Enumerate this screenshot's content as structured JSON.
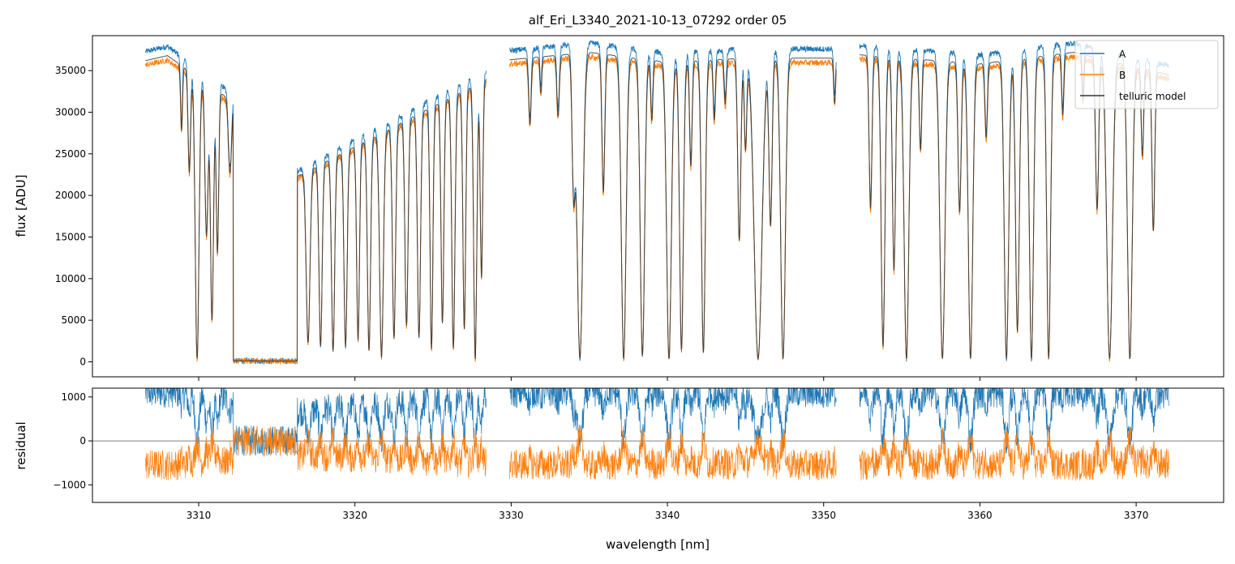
{
  "chart_data": [
    {
      "type": "line",
      "panel": "top",
      "title": "alf_Eri_L3340_2021-10-13_07292  order 05",
      "xlabel": "",
      "ylabel": "flux [ADU]",
      "xlim": [
        3303.2,
        3375.6
      ],
      "ylim": [
        -1800,
        39200
      ],
      "xticks": [
        3310,
        3320,
        3330,
        3340,
        3350,
        3360,
        3370
      ],
      "xtick_labels_visible": false,
      "yticks": [
        0,
        5000,
        10000,
        15000,
        20000,
        25000,
        30000,
        35000
      ],
      "ytick_labels": [
        "0",
        "5000",
        "10000",
        "15000",
        "20000",
        "25000",
        "30000",
        "35000"
      ],
      "grid": false,
      "legend_position": "top-right",
      "segments": [
        [
          3306.6,
          3328.4
        ],
        [
          3329.9,
          3350.8
        ],
        [
          3352.3,
          3372.1
        ]
      ],
      "series": [
        {
          "name": "A",
          "color": "#1f77b4",
          "scale": 1.03
        },
        {
          "name": "B",
          "color": "#ff7f0e",
          "scale": 0.985
        },
        {
          "name": "telluric model",
          "color": "#333333",
          "scale": 1.0
        }
      ],
      "spectrum_profile": {
        "continuum": [
          {
            "x": 3306.6,
            "y": 36200
          },
          {
            "x": 3308.0,
            "y": 36800
          },
          {
            "x": 3312.0,
            "y": 31500
          },
          {
            "x": 3316.0,
            "y": 22000
          },
          {
            "x": 3328.4,
            "y": 34000
          },
          {
            "x": 3329.9,
            "y": 36300
          },
          {
            "x": 3335.0,
            "y": 37200
          },
          {
            "x": 3340.0,
            "y": 36000
          },
          {
            "x": 3345.0,
            "y": 36500
          },
          {
            "x": 3350.8,
            "y": 36500
          },
          {
            "x": 3352.3,
            "y": 36900
          },
          {
            "x": 3360.0,
            "y": 35800
          },
          {
            "x": 3366.0,
            "y": 37200
          },
          {
            "x": 3372.1,
            "y": 34500
          }
        ],
        "blocked_band": [
          3312.2,
          3316.3
        ],
        "absorption_lines": [
          {
            "x": 3308.9,
            "depth": 0.22,
            "width": 0.06
          },
          {
            "x": 3309.4,
            "depth": 0.35,
            "width": 0.08
          },
          {
            "x": 3309.9,
            "depth": 0.99,
            "width": 0.12
          },
          {
            "x": 3310.5,
            "depth": 0.55,
            "width": 0.1
          },
          {
            "x": 3310.85,
            "depth": 0.85,
            "width": 0.1
          },
          {
            "x": 3311.2,
            "depth": 0.6,
            "width": 0.08
          },
          {
            "x": 3312.0,
            "depth": 0.28,
            "width": 0.1
          },
          {
            "x": 3317.0,
            "depth": 0.9,
            "width": 0.12
          },
          {
            "x": 3317.8,
            "depth": 0.92,
            "width": 0.1
          },
          {
            "x": 3318.6,
            "depth": 0.95,
            "width": 0.1
          },
          {
            "x": 3319.4,
            "depth": 0.93,
            "width": 0.1
          },
          {
            "x": 3320.2,
            "depth": 0.9,
            "width": 0.09
          },
          {
            "x": 3320.9,
            "depth": 0.95,
            "width": 0.1
          },
          {
            "x": 3321.7,
            "depth": 0.98,
            "width": 0.12
          },
          {
            "x": 3322.5,
            "depth": 0.9,
            "width": 0.1
          },
          {
            "x": 3323.3,
            "depth": 0.85,
            "width": 0.1
          },
          {
            "x": 3324.1,
            "depth": 0.9,
            "width": 0.1
          },
          {
            "x": 3324.9,
            "depth": 0.95,
            "width": 0.09
          },
          {
            "x": 3325.6,
            "depth": 0.85,
            "width": 0.09
          },
          {
            "x": 3326.3,
            "depth": 0.95,
            "width": 0.1
          },
          {
            "x": 3327.0,
            "depth": 0.88,
            "width": 0.09
          },
          {
            "x": 3327.7,
            "depth": 0.99,
            "width": 0.1
          },
          {
            "x": 3328.1,
            "depth": 0.7,
            "width": 0.08
          },
          {
            "x": 3331.2,
            "depth": 0.22,
            "width": 0.08
          },
          {
            "x": 3331.9,
            "depth": 0.12,
            "width": 0.06
          },
          {
            "x": 3333.0,
            "depth": 0.2,
            "width": 0.08
          },
          {
            "x": 3334.0,
            "depth": 0.45,
            "width": 0.1
          },
          {
            "x": 3334.4,
            "depth": 0.99,
            "width": 0.18
          },
          {
            "x": 3335.9,
            "depth": 0.45,
            "width": 0.09
          },
          {
            "x": 3337.2,
            "depth": 0.99,
            "width": 0.15
          },
          {
            "x": 3338.4,
            "depth": 0.98,
            "width": 0.14
          },
          {
            "x": 3339.0,
            "depth": 0.2,
            "width": 0.07
          },
          {
            "x": 3340.1,
            "depth": 0.99,
            "width": 0.15
          },
          {
            "x": 3340.9,
            "depth": 0.96,
            "width": 0.12
          },
          {
            "x": 3341.5,
            "depth": 0.35,
            "width": 0.08
          },
          {
            "x": 3342.3,
            "depth": 0.97,
            "width": 0.12
          },
          {
            "x": 3343.0,
            "depth": 0.2,
            "width": 0.07
          },
          {
            "x": 3343.7,
            "depth": 0.15,
            "width": 0.07
          },
          {
            "x": 3344.6,
            "depth": 0.6,
            "width": 0.1
          },
          {
            "x": 3345.0,
            "depth": 0.3,
            "width": 0.08
          },
          {
            "x": 3345.8,
            "depth": 0.99,
            "width": 0.25
          },
          {
            "x": 3346.6,
            "depth": 0.55,
            "width": 0.1
          },
          {
            "x": 3347.4,
            "depth": 0.99,
            "width": 0.15
          },
          {
            "x": 3350.7,
            "depth": 0.15,
            "width": 0.06
          },
          {
            "x": 3353.0,
            "depth": 0.5,
            "width": 0.09
          },
          {
            "x": 3353.8,
            "depth": 0.95,
            "width": 0.12
          },
          {
            "x": 3354.5,
            "depth": 0.7,
            "width": 0.1
          },
          {
            "x": 3355.3,
            "depth": 0.99,
            "width": 0.15
          },
          {
            "x": 3356.2,
            "depth": 0.3,
            "width": 0.08
          },
          {
            "x": 3357.6,
            "depth": 0.99,
            "width": 0.16
          },
          {
            "x": 3358.7,
            "depth": 0.5,
            "width": 0.1
          },
          {
            "x": 3359.4,
            "depth": 0.99,
            "width": 0.14
          },
          {
            "x": 3360.4,
            "depth": 0.25,
            "width": 0.08
          },
          {
            "x": 3361.7,
            "depth": 0.99,
            "width": 0.14
          },
          {
            "x": 3362.4,
            "depth": 0.9,
            "width": 0.12
          },
          {
            "x": 3363.3,
            "depth": 0.99,
            "width": 0.13
          },
          {
            "x": 3364.4,
            "depth": 0.99,
            "width": 0.12
          },
          {
            "x": 3365.3,
            "depth": 0.2,
            "width": 0.07
          },
          {
            "x": 3366.6,
            "depth": 0.15,
            "width": 0.06
          },
          {
            "x": 3367.5,
            "depth": 0.5,
            "width": 0.1
          },
          {
            "x": 3368.3,
            "depth": 0.99,
            "width": 0.18
          },
          {
            "x": 3369.6,
            "depth": 0.99,
            "width": 0.15
          },
          {
            "x": 3370.4,
            "depth": 0.3,
            "width": 0.08
          },
          {
            "x": 3371.1,
            "depth": 0.55,
            "width": 0.09
          }
        ]
      }
    },
    {
      "type": "line",
      "panel": "bottom",
      "title": "",
      "xlabel": "wavelength [nm]",
      "ylabel": "residual",
      "xlim": [
        3303.2,
        3375.6
      ],
      "ylim": [
        -1400,
        1200
      ],
      "xticks": [
        3310,
        3320,
        3330,
        3340,
        3350,
        3360,
        3370
      ],
      "xtick_labels": [
        "3310",
        "3320",
        "3330",
        "3340",
        "3350",
        "3360",
        "3370"
      ],
      "yticks": [
        -1000,
        0,
        1000
      ],
      "ytick_labels": [
        "−1000",
        "0",
        "1000"
      ],
      "zero_line": true,
      "grid": false,
      "segments": [
        [
          3306.6,
          3328.4
        ],
        [
          3329.9,
          3350.8
        ],
        [
          3352.3,
          3372.1
        ]
      ],
      "series": [
        {
          "name": "A",
          "color": "#1f77b4"
        },
        {
          "name": "B",
          "color": "#ff7f0e"
        }
      ]
    }
  ]
}
